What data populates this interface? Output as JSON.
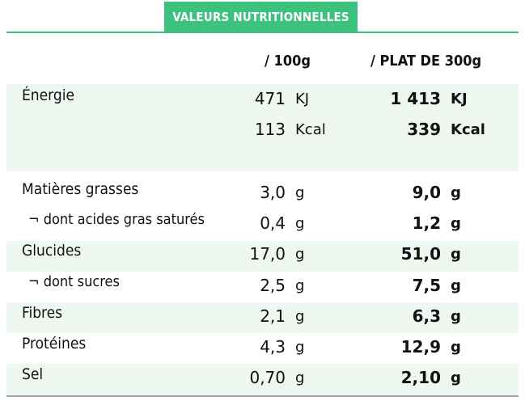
{
  "title": "VALEURS NUTRITIONNELLES",
  "headers": {
    "per100": "/ 100g",
    "perPlat": "/ PLAT DE 300g"
  },
  "rows": [
    {
      "label": "Énergie",
      "v100": "471",
      "u100": "KJ",
      "vplat": "1 413",
      "uplat": "KJ"
    },
    {
      "label": "",
      "v100": "113",
      "u100": "Kcal",
      "vplat": "339",
      "uplat": "Kcal"
    },
    {
      "label": "Matières grasses",
      "v100": "3,0",
      "u100": "g",
      "vplat": "9,0",
      "uplat": "g"
    },
    {
      "label": "¬ dont acides gras saturés",
      "v100": "0,4",
      "u100": "g",
      "vplat": "1,2",
      "uplat": "g"
    },
    {
      "label": "Glucides",
      "v100": "17,0",
      "u100": "g",
      "vplat": "51,0",
      "uplat": "g"
    },
    {
      "label": "¬ dont sucres",
      "v100": "2,5",
      "u100": "g",
      "vplat": "7,5",
      "uplat": "g"
    },
    {
      "label": "Fibres",
      "v100": "2,1",
      "u100": "g",
      "vplat": "6,3",
      "uplat": "g"
    },
    {
      "label": "Protéines",
      "v100": "4,3",
      "u100": "g",
      "vplat": "12,9",
      "uplat": "g"
    },
    {
      "label": "Sel",
      "v100": "0,70",
      "u100": "g",
      "vplat": "2,10",
      "uplat": "g"
    }
  ],
  "colors": {
    "accent": "#3cc27e",
    "stripe": "#eef8f1",
    "rule": "#9aa39e"
  }
}
